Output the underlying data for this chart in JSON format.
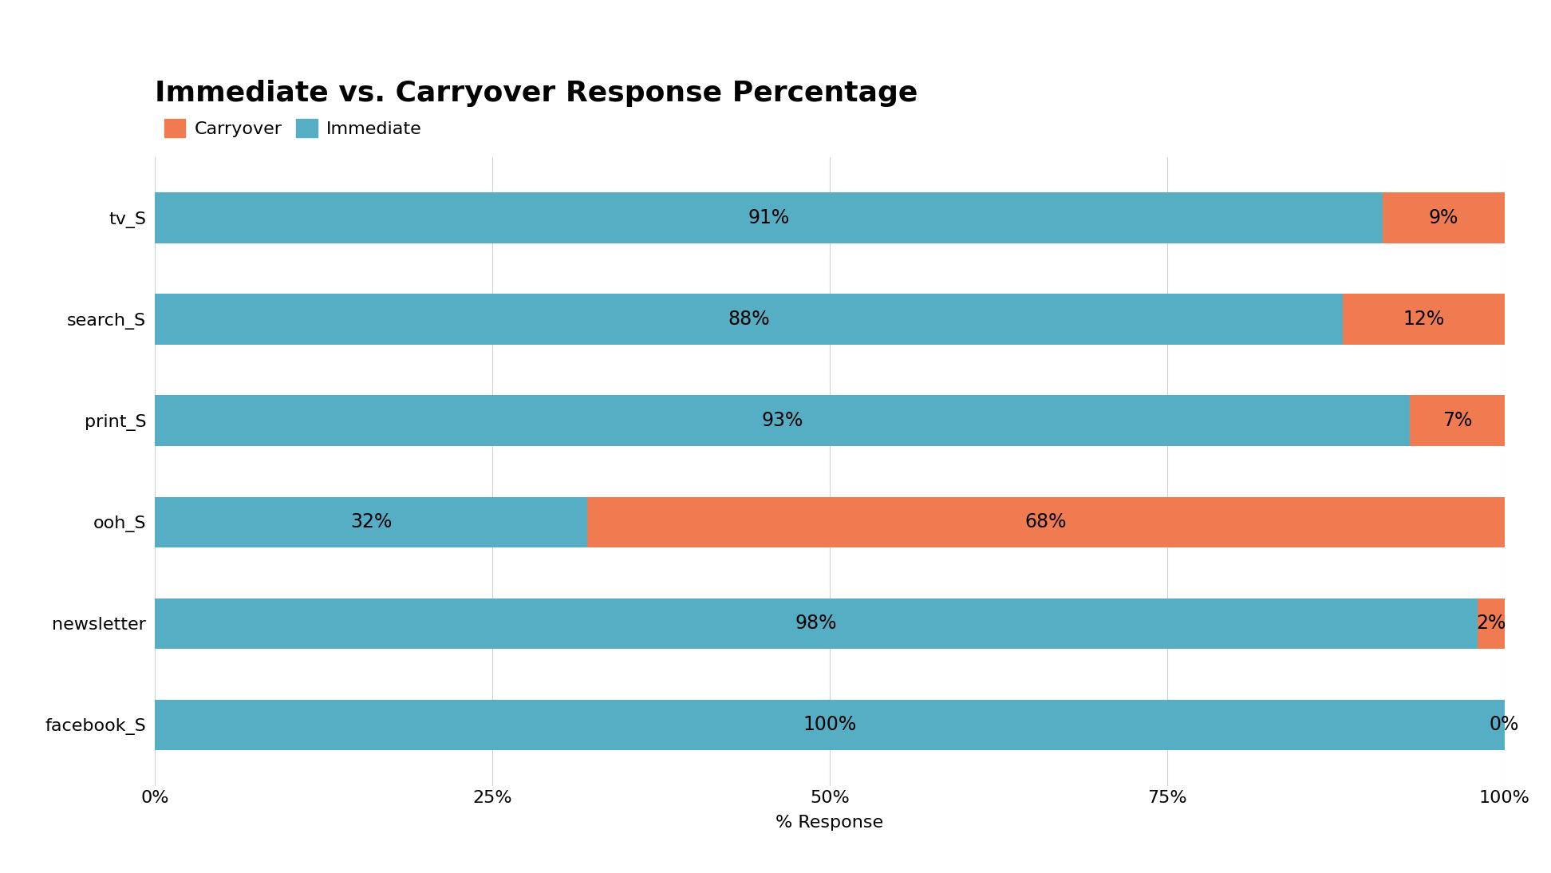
{
  "title": "Immediate vs. Carryover Response Percentage",
  "categories": [
    "tv_S",
    "search_S",
    "print_S",
    "ooh_S",
    "newsletter",
    "facebook_S"
  ],
  "immediate": [
    91,
    88,
    93,
    32,
    98,
    100
  ],
  "carryover": [
    9,
    12,
    7,
    68,
    2,
    0
  ],
  "immediate_color": "#55aec4",
  "carryover_color": "#f17b50",
  "xlabel": "% Response",
  "background_color": "#ffffff",
  "title_fontsize": 26,
  "label_fontsize": 16,
  "tick_fontsize": 16,
  "bar_label_fontsize": 17,
  "legend_fontsize": 16,
  "grid_color": "#d0d0d0",
  "xlim": [
    0,
    100
  ],
  "xticks": [
    0,
    25,
    50,
    75,
    100
  ],
  "xtick_labels": [
    "0%",
    "25%",
    "50%",
    "75%",
    "100%"
  ]
}
